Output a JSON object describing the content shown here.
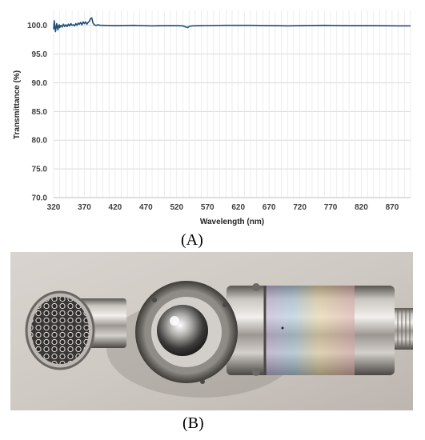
{
  "panel_labels": {
    "a": "(A)",
    "b": "(B)"
  },
  "colors": {
    "line": "#1f4e79",
    "grid": "#d9d9d9"
  },
  "chart_data": {
    "type": "line",
    "title": "",
    "xlabel": "Wavelength (nm)",
    "ylabel": "Transmittance (%)",
    "xlim": [
      320,
      900
    ],
    "ylim": [
      70.0,
      101.5
    ],
    "yticks": [
      "70.0",
      "75.0",
      "80.0",
      "85.0",
      "90.0",
      "95.0",
      "100.0"
    ],
    "xticks": [
      "320",
      "370",
      "420",
      "470",
      "520",
      "570",
      "620",
      "670",
      "720",
      "770",
      "820",
      "870"
    ],
    "grid": true,
    "legend": "none",
    "series": [
      {
        "x": [
          320,
          321,
          322,
          323,
          324,
          325,
          326,
          327,
          328,
          329,
          330,
          332,
          334,
          336,
          338,
          340,
          342,
          344,
          346,
          348,
          350,
          352,
          354,
          356,
          358,
          360,
          362,
          364,
          366,
          368,
          370,
          372,
          374,
          376,
          378,
          380,
          382,
          384,
          386,
          388,
          390,
          392,
          395,
          400,
          420,
          450,
          480,
          500,
          520,
          530,
          535,
          538,
          540,
          545,
          560,
          600,
          640,
          680,
          700,
          720,
          760,
          800,
          840,
          880,
          900
        ],
        "y": [
          99.3,
          100.8,
          99.8,
          98.9,
          99.6,
          100.3,
          99.7,
          99.2,
          99.9,
          100.1,
          99.6,
          100.0,
          99.7,
          100.2,
          99.8,
          100.1,
          99.8,
          100.2,
          99.9,
          100.3,
          100.0,
          100.1,
          99.9,
          100.3,
          100.0,
          100.4,
          100.2,
          100.5,
          100.1,
          100.6,
          100.3,
          100.6,
          100.2,
          100.5,
          100.7,
          101.2,
          101.3,
          100.4,
          100.1,
          100.0,
          100.0,
          100.1,
          100.0,
          100.0,
          99.95,
          100.0,
          99.9,
          99.95,
          99.95,
          99.9,
          99.7,
          99.6,
          99.8,
          99.9,
          99.95,
          100.0,
          100.0,
          99.95,
          99.9,
          99.95,
          100.0,
          99.95,
          99.95,
          99.9,
          99.9
        ]
      }
    ]
  }
}
